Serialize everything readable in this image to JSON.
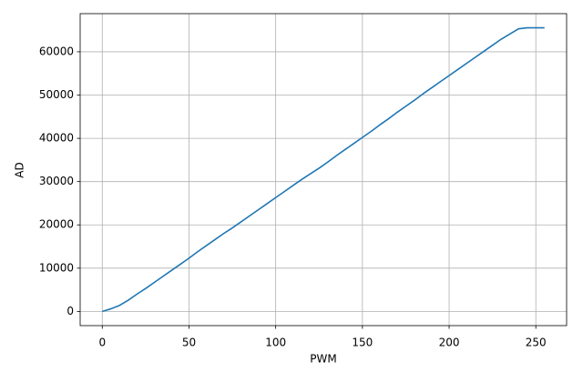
{
  "chart_data": {
    "type": "line",
    "xlabel": "PWM",
    "ylabel": "AD",
    "x": [
      0,
      5,
      10,
      15,
      20,
      25,
      30,
      35,
      40,
      45,
      50,
      55,
      60,
      65,
      70,
      75,
      80,
      85,
      90,
      95,
      100,
      105,
      110,
      115,
      120,
      125,
      130,
      135,
      140,
      145,
      150,
      155,
      160,
      165,
      170,
      175,
      180,
      185,
      190,
      195,
      200,
      205,
      210,
      215,
      220,
      225,
      230,
      235,
      240,
      245,
      250,
      255
    ],
    "values": [
      0,
      600,
      1400,
      2600,
      4000,
      5300,
      6700,
      8100,
      9500,
      10900,
      12300,
      13800,
      15200,
      16600,
      18000,
      19300,
      20700,
      22100,
      23500,
      24900,
      26300,
      27700,
      29100,
      30500,
      31800,
      33100,
      34500,
      36000,
      37400,
      38800,
      40200,
      41600,
      43100,
      44500,
      46000,
      47400,
      48800,
      50300,
      51700,
      53100,
      54500,
      55900,
      57300,
      58700,
      60100,
      61500,
      62900,
      64100,
      65300,
      65535,
      65535,
      65535
    ],
    "color": "#1f77b4",
    "xlim": [
      -12.75,
      267.75
    ],
    "xticks": [
      0,
      50,
      100,
      150,
      200,
      250
    ],
    "ylim": [
      -3277,
      68812
    ],
    "yticks": [
      0,
      10000,
      20000,
      30000,
      40000,
      50000,
      60000
    ],
    "grid": true
  }
}
